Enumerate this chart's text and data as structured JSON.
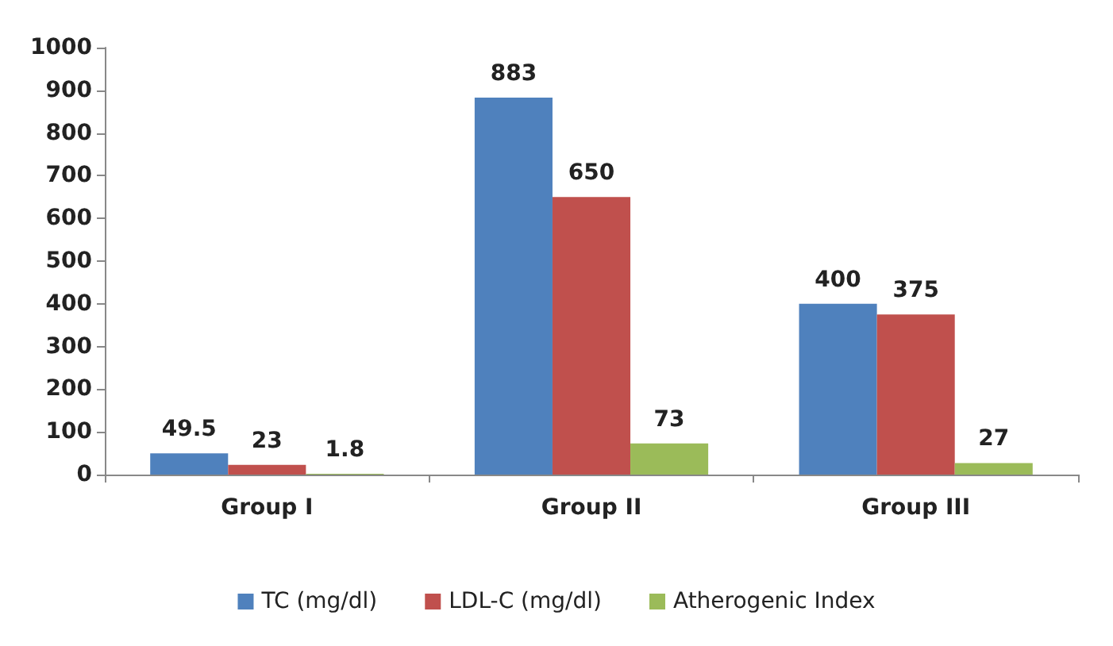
{
  "chart_data": {
    "type": "bar",
    "categories": [
      "Group I",
      "Group II",
      "Group III"
    ],
    "series": [
      {
        "name": "TC (mg/dl)",
        "color": "#4f81bd",
        "values": [
          49.5,
          883,
          400
        ]
      },
      {
        "name": "LDL-C (mg/dl)",
        "color": "#c0504d",
        "values": [
          23,
          650,
          375
        ]
      },
      {
        "name": "Atherogenic Index",
        "color": "#9bbb59",
        "values": [
          1.8,
          73,
          27
        ]
      }
    ],
    "ylim": [
      0,
      1000
    ],
    "yticks": [
      0,
      100,
      200,
      300,
      400,
      500,
      600,
      700,
      800,
      900,
      1000
    ],
    "grid": false,
    "legend": "bottom",
    "data_labels": true
  }
}
